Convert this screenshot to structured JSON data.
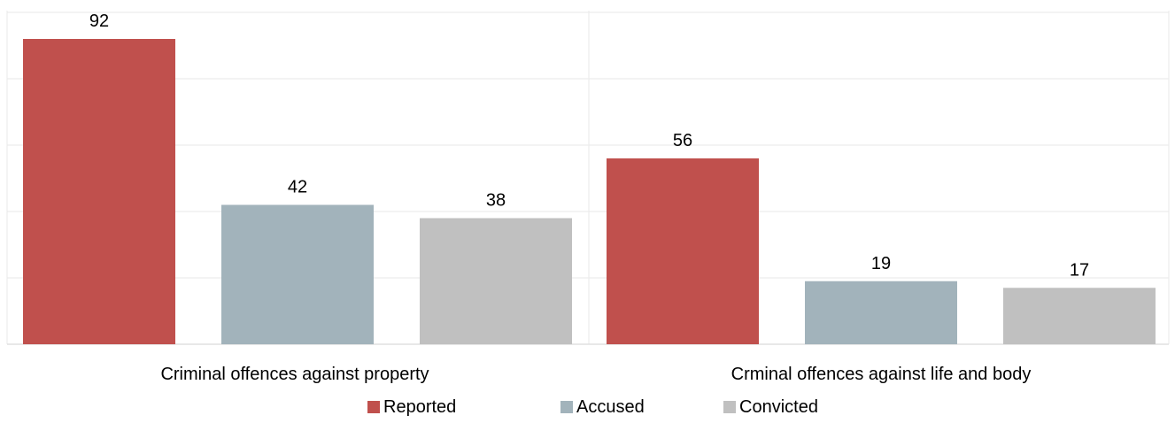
{
  "chart_data": {
    "type": "bar",
    "categories": [
      "Criminal offences against property",
      "Crminal offences against life and body"
    ],
    "series": [
      {
        "name": "Reported",
        "values": [
          92,
          56
        ],
        "color": "#c0504d"
      },
      {
        "name": "Accused",
        "values": [
          42,
          19
        ],
        "color": "#a2b3bb"
      },
      {
        "name": "Convicted",
        "values": [
          38,
          17
        ],
        "color": "#c0c0c0"
      }
    ],
    "ylim": [
      0,
      100
    ],
    "grid": true,
    "legend_position": "bottom"
  }
}
